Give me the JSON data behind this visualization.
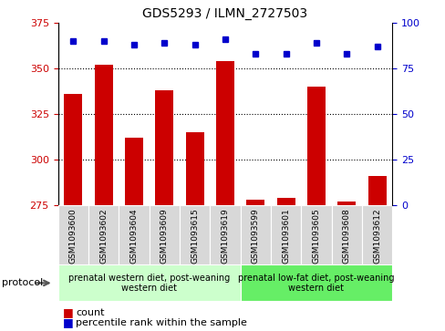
{
  "title": "GDS5293 / ILMN_2727503",
  "samples": [
    "GSM1093600",
    "GSM1093602",
    "GSM1093604",
    "GSM1093609",
    "GSM1093615",
    "GSM1093619",
    "GSM1093599",
    "GSM1093601",
    "GSM1093605",
    "GSM1093608",
    "GSM1093612"
  ],
  "counts": [
    336,
    352,
    312,
    338,
    315,
    354,
    278,
    279,
    340,
    277,
    291
  ],
  "percentiles": [
    90,
    90,
    88,
    89,
    88,
    91,
    83,
    83,
    89,
    83,
    87
  ],
  "ylim_left": [
    275,
    375
  ],
  "ylim_right": [
    0,
    100
  ],
  "yticks_left": [
    275,
    300,
    325,
    350,
    375
  ],
  "yticks_right": [
    0,
    25,
    50,
    75,
    100
  ],
  "groups": [
    {
      "label": "prenatal western diet, post-weaning\nwestern diet",
      "start": 0,
      "end": 6,
      "color": "#ccffcc"
    },
    {
      "label": "prenatal low-fat diet, post-weaning\nwestern diet",
      "start": 6,
      "end": 11,
      "color": "#66ee66"
    }
  ],
  "bar_color": "#cc0000",
  "dot_color": "#0000cc",
  "bar_width": 0.6,
  "left_tick_color": "#cc0000",
  "right_tick_color": "#0000cc",
  "bg_color": "#d8d8d8",
  "legend_items": [
    "count",
    "percentile rank within the sample"
  ],
  "protocol_label": "protocol"
}
